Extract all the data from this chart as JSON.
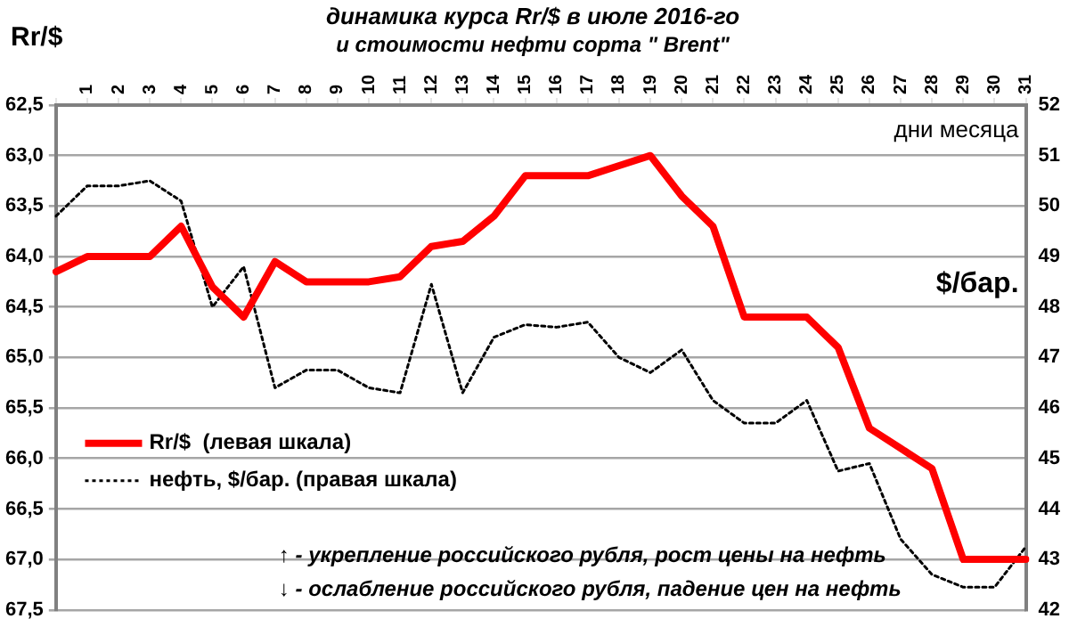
{
  "chart_data": {
    "type": "line",
    "title": "динамика курса Rr/$ в июле 2016-го",
    "subtitle": "и стоимости нефти сорта \" Brent\"",
    "xlabel": "дни месяца",
    "ylabel": "Rr/$",
    "y2label": "$/бар.",
    "categories": [
      null,
      "1",
      "2",
      "3",
      "4",
      "5",
      "6",
      "7",
      "8",
      "9",
      "10",
      "11",
      "12",
      "13",
      "14",
      "15",
      "16",
      "17",
      "18",
      "19",
      "20",
      "21",
      "22",
      "23",
      "24",
      "25",
      "26",
      "27",
      "28",
      "29",
      "30",
      "31"
    ],
    "series": [
      {
        "name": "Rr/$  (левая шкала)",
        "color": "#ff0000",
        "line_style": "solid",
        "values": [
          64.15,
          64.0,
          64.0,
          64.0,
          63.7,
          64.3,
          64.6,
          64.05,
          64.25,
          64.25,
          64.25,
          64.2,
          63.9,
          63.85,
          63.6,
          63.2,
          63.2,
          63.2,
          63.1,
          63.0,
          63.4,
          63.7,
          64.6,
          64.6,
          64.6,
          64.9,
          65.7,
          65.9,
          66.1,
          67.0,
          67.0,
          67.0
        ]
      },
      {
        "name": "нефть, $/бар. (правая шкала)",
        "color": "#000000",
        "line_style": "dotted",
        "axis": "y2",
        "values": [
          49.8,
          50.4,
          50.4,
          50.5,
          50.1,
          48.0,
          48.8,
          46.4,
          46.75,
          46.75,
          46.4,
          46.3,
          48.45,
          46.3,
          47.4,
          47.65,
          47.6,
          47.7,
          47.0,
          46.7,
          47.15,
          46.15,
          45.7,
          45.7,
          46.15,
          44.75,
          44.9,
          43.4,
          42.7,
          42.45,
          42.45,
          43.25
        ]
      }
    ],
    "ylim": [
      67.5,
      62.5
    ],
    "yticks": [
      {
        "value": 62.5,
        "label": "62,5"
      },
      {
        "value": 63,
        "label": "63,0"
      },
      {
        "value": 63.5,
        "label": "63,5"
      },
      {
        "value": 64,
        "label": "64,0"
      },
      {
        "value": 64.5,
        "label": "64,5"
      },
      {
        "value": 65,
        "label": "65,0"
      },
      {
        "value": 65.5,
        "label": "65,5"
      },
      {
        "value": 66,
        "label": "66,0"
      },
      {
        "value": 66.5,
        "label": "66,5"
      },
      {
        "value": 67,
        "label": "67,0"
      },
      {
        "value": 67.5,
        "label": "67,5"
      }
    ],
    "y2lim": [
      42,
      52
    ],
    "y2ticks": [
      42,
      43,
      44,
      45,
      46,
      47,
      48,
      49,
      50,
      51,
      52
    ],
    "grid": "y",
    "legend": "left",
    "marker": "none",
    "annotations": [
      "↑ - укрепление российского рубля, рост цены на нефть",
      "↓ - ослабление российского рубля, падение цен на нефть"
    ]
  }
}
